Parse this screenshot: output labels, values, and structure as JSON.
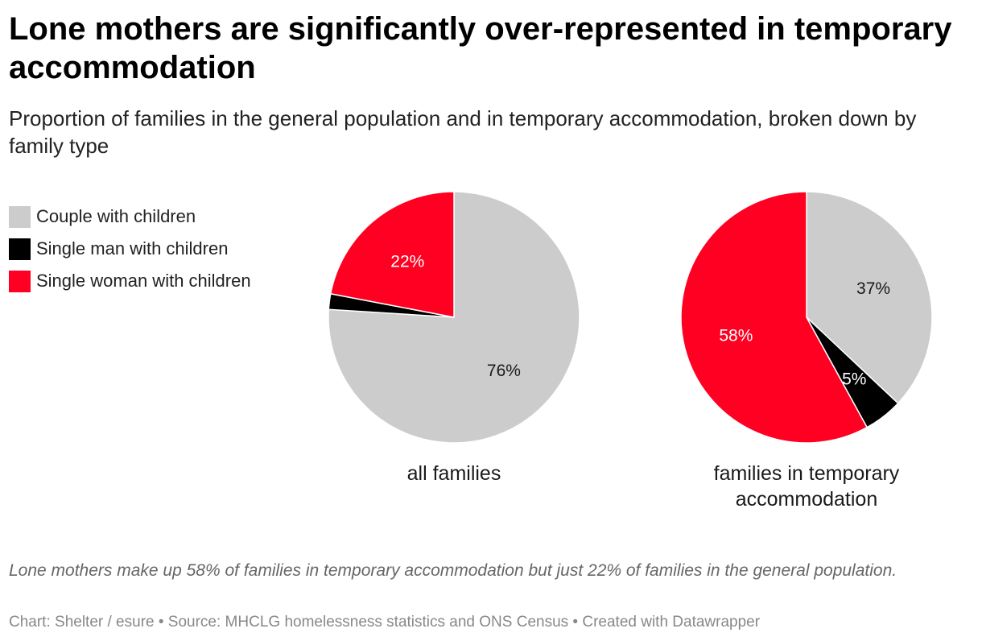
{
  "title": "Lone mothers are significantly over-represented in temporary accommodation",
  "subtitle": "Proportion of families in the general population and in temporary accommodation, broken down by family type",
  "legend": [
    {
      "label": "Couple with children",
      "color": "#cccccc"
    },
    {
      "label": "Single man with children",
      "color": "#000000"
    },
    {
      "label": "Single woman with children",
      "color": "#ff0022"
    }
  ],
  "chart_data": [
    {
      "type": "pie",
      "label_lines": [
        "all families"
      ],
      "slices": [
        {
          "category": "Couple with children",
          "value": 76,
          "label": "76%",
          "color": "#cccccc",
          "label_color": "#1a1a1a"
        },
        {
          "category": "Single man with children",
          "value": 2,
          "label": "",
          "color": "#000000",
          "label_color": "#ffffff"
        },
        {
          "category": "Single woman with children",
          "value": 22,
          "label": "22%",
          "color": "#ff0022",
          "label_color": "#ffffff"
        }
      ]
    },
    {
      "type": "pie",
      "label_lines": [
        "families in temporary",
        "accommodation"
      ],
      "slices": [
        {
          "category": "Couple with children",
          "value": 37,
          "label": "37%",
          "color": "#cccccc",
          "label_color": "#1a1a1a"
        },
        {
          "category": "Single man with children",
          "value": 5,
          "label": "5%",
          "color": "#000000",
          "label_color": "#ffffff"
        },
        {
          "category": "Single woman with children",
          "value": 58,
          "label": "58%",
          "color": "#ff0022",
          "label_color": "#ffffff"
        }
      ]
    }
  ],
  "notes": "Lone mothers make up 58% of families in temporary accommodation but just 22% of families in the general population.",
  "footer": "Chart: Shelter / esure • Source: MHCLG homelessness statistics and ONS Census • Created with Datawrapper"
}
